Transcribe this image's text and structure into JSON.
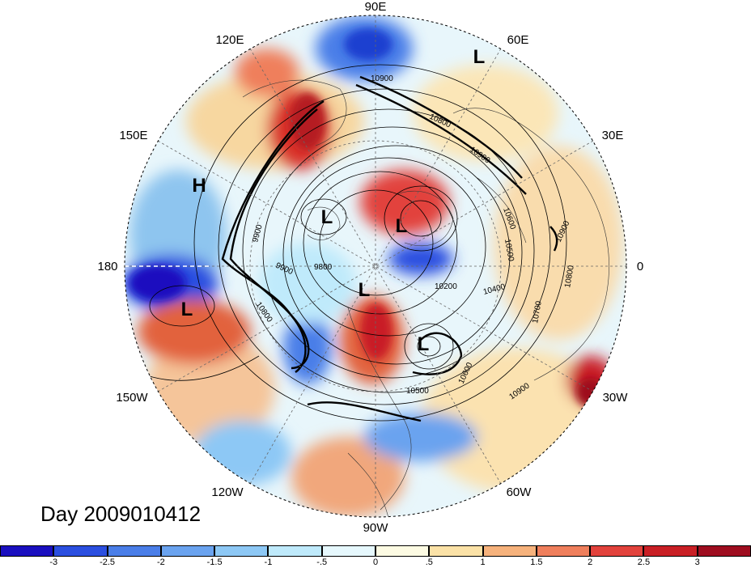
{
  "title": "Day 2009010412",
  "longitude_labels": {
    "lon_90e": "90E",
    "lon_60e": "60E",
    "lon_30e": "30E",
    "lon_0": "0",
    "lon_30w": "30W",
    "lon_60w": "60W",
    "lon_90w": "90W",
    "lon_120w": "120W",
    "lon_150w": "150W",
    "lon_180": "180",
    "lon_150e": "150E",
    "lon_120e": "120E"
  },
  "pressure_systems": [
    {
      "label": "L",
      "lon": "60E",
      "note": ""
    },
    {
      "label": "H",
      "lon": "150E",
      "note": ""
    },
    {
      "label": "L",
      "lon": "165W",
      "note": ""
    },
    {
      "label": "L",
      "lon": "",
      "note": ""
    },
    {
      "label": "L",
      "lon": "",
      "note": ""
    },
    {
      "label": "L",
      "lon": "",
      "note": ""
    },
    {
      "label": "L",
      "lon": "",
      "note": ""
    }
  ],
  "contour_labels": [
    "10900",
    "10800",
    "10900",
    "10600",
    "10500",
    "9900",
    "9900",
    "9800",
    "10200",
    "10400",
    "10700",
    "10800",
    "10900",
    "10600",
    "10500",
    "10800",
    "10900"
  ],
  "colorbar": {
    "ticks": [
      "-3",
      "-2.5",
      "-2",
      "-1.5",
      "-1",
      "-.5",
      "0",
      ".5",
      "1",
      "1.5",
      "2",
      "2.5",
      "3"
    ],
    "colors": [
      "#1a0fbf",
      "#2b4fe0",
      "#4a7ee8",
      "#6aa3ef",
      "#8dc8f5",
      "#bfeafb",
      "#e6f8fd",
      "#fdfbe3",
      "#fbe2a7",
      "#f6b27c",
      "#ef7f5c",
      "#e2423c",
      "#c91f25",
      "#9e0d1f"
    ]
  }
}
